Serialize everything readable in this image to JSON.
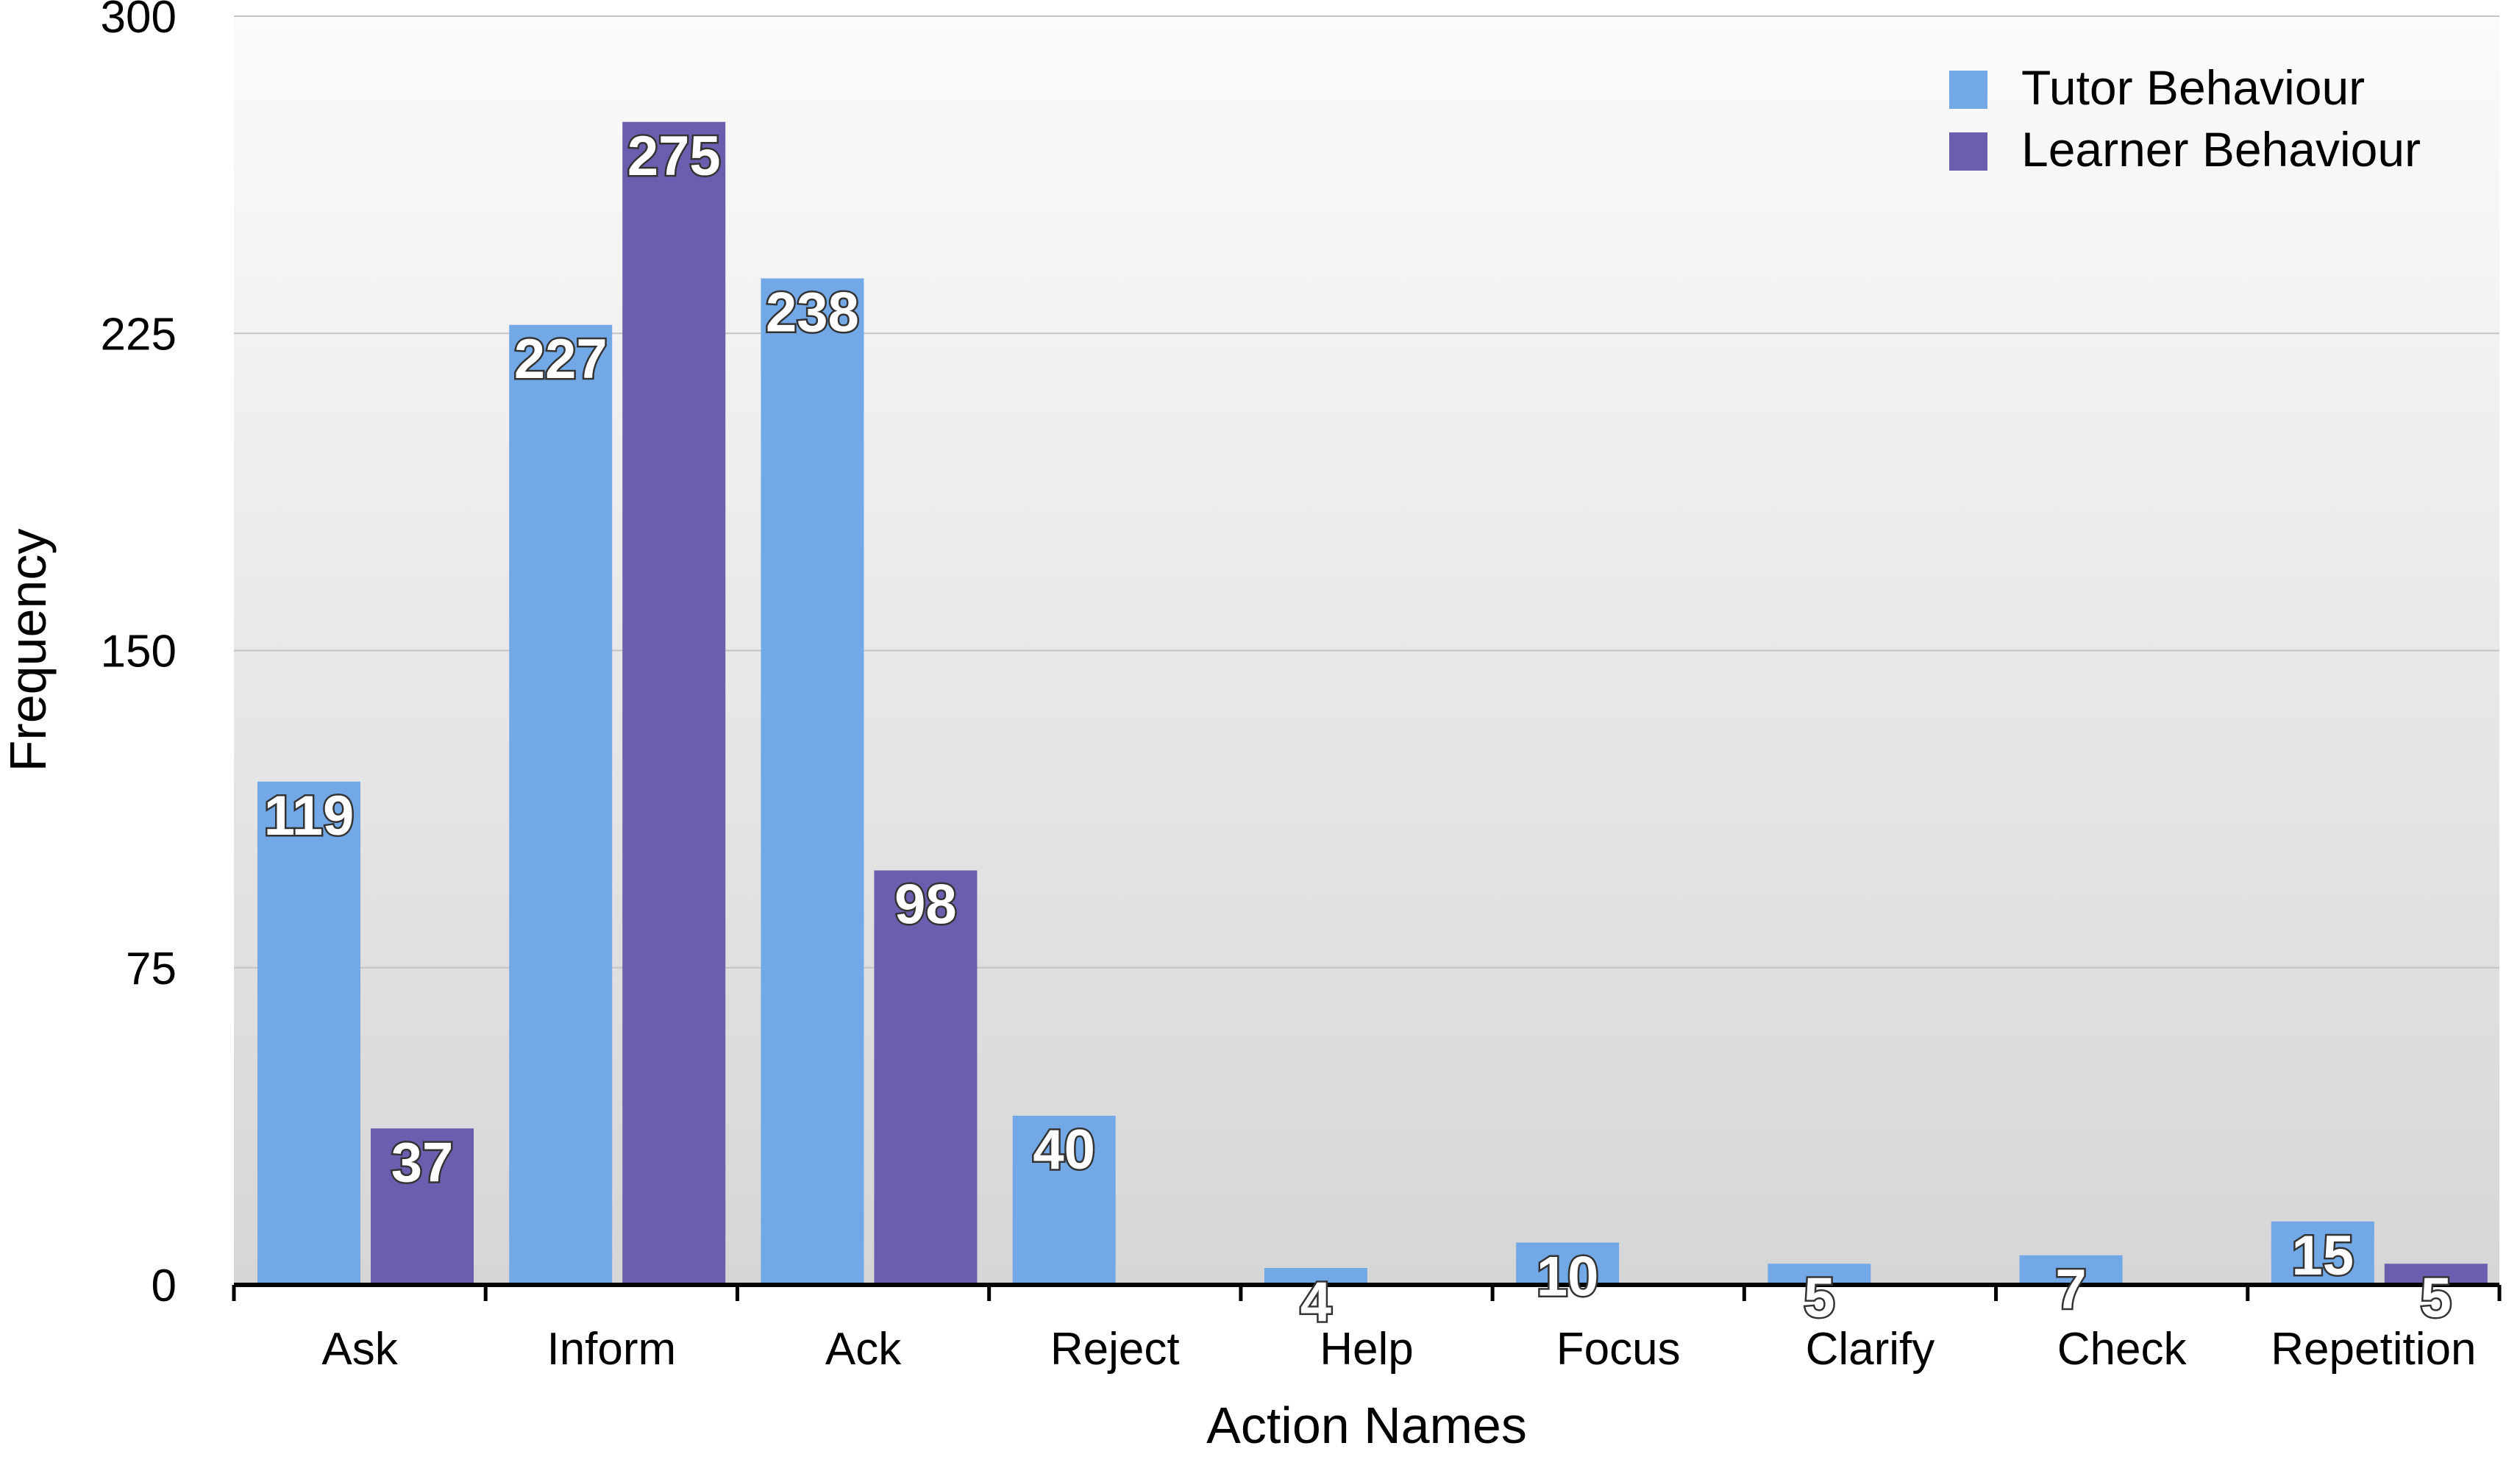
{
  "chart_data": {
    "type": "bar",
    "title": "",
    "xlabel": "Action Names",
    "ylabel": "Frequency",
    "ylim": [
      0,
      300
    ],
    "yticks": [
      0,
      75,
      150,
      225,
      300
    ],
    "grid": true,
    "legend_position": "top-right",
    "categories": [
      "Ask",
      "Inform",
      "Ack",
      "Reject",
      "Help",
      "Focus",
      "Clarify",
      "Check",
      "Repetition"
    ],
    "series": [
      {
        "name": "Tutor Behaviour",
        "color": "#72A8E6",
        "values": [
          119,
          227,
          238,
          40,
          4,
          10,
          5,
          7,
          15
        ]
      },
      {
        "name": "Learner Behaviour",
        "color": "#6A5FAE",
        "values": [
          37,
          275,
          98,
          null,
          null,
          null,
          null,
          null,
          5
        ]
      }
    ]
  }
}
